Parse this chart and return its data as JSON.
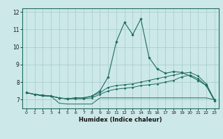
{
  "title": "",
  "xlabel": "Humidex (Indice chaleur)",
  "x": [
    0,
    1,
    2,
    3,
    4,
    5,
    6,
    7,
    8,
    9,
    10,
    11,
    12,
    13,
    14,
    15,
    16,
    17,
    18,
    19,
    20,
    21,
    22,
    23
  ],
  "line1": [
    7.4,
    7.3,
    7.2,
    7.2,
    6.8,
    6.75,
    6.75,
    6.75,
    6.75,
    7.1,
    7.1,
    7.1,
    7.1,
    7.1,
    7.1,
    7.1,
    7.1,
    7.1,
    7.1,
    7.1,
    7.1,
    7.1,
    7.1,
    7.0
  ],
  "line2": [
    7.4,
    7.3,
    7.25,
    7.2,
    7.1,
    7.05,
    7.05,
    7.05,
    7.1,
    7.3,
    7.5,
    7.6,
    7.65,
    7.7,
    7.8,
    7.85,
    7.9,
    8.0,
    8.1,
    8.3,
    8.4,
    8.2,
    7.8,
    6.95
  ],
  "line3": [
    7.4,
    7.3,
    7.25,
    7.2,
    7.1,
    7.05,
    7.1,
    7.1,
    7.2,
    7.4,
    7.7,
    7.8,
    7.85,
    7.9,
    8.0,
    8.1,
    8.2,
    8.3,
    8.4,
    8.5,
    8.55,
    8.35,
    7.9,
    7.0
  ],
  "line4": [
    7.4,
    7.3,
    7.25,
    7.2,
    7.1,
    7.05,
    7.1,
    7.1,
    7.2,
    7.5,
    8.3,
    10.3,
    11.4,
    10.7,
    11.6,
    9.4,
    8.75,
    8.5,
    8.6,
    8.55,
    8.35,
    8.1,
    7.8,
    6.95
  ],
  "bg_color": "#cce8e8",
  "grid_color": "#aacece",
  "line_color": "#1e6b5e",
  "ylim": [
    6.5,
    12.2
  ],
  "xlim": [
    -0.5,
    23.5
  ],
  "yticks": [
    7,
    8,
    9,
    10,
    11,
    12
  ],
  "xticks": [
    0,
    1,
    2,
    3,
    4,
    5,
    6,
    7,
    8,
    9,
    10,
    11,
    12,
    13,
    14,
    15,
    16,
    17,
    18,
    19,
    20,
    21,
    22,
    23
  ]
}
